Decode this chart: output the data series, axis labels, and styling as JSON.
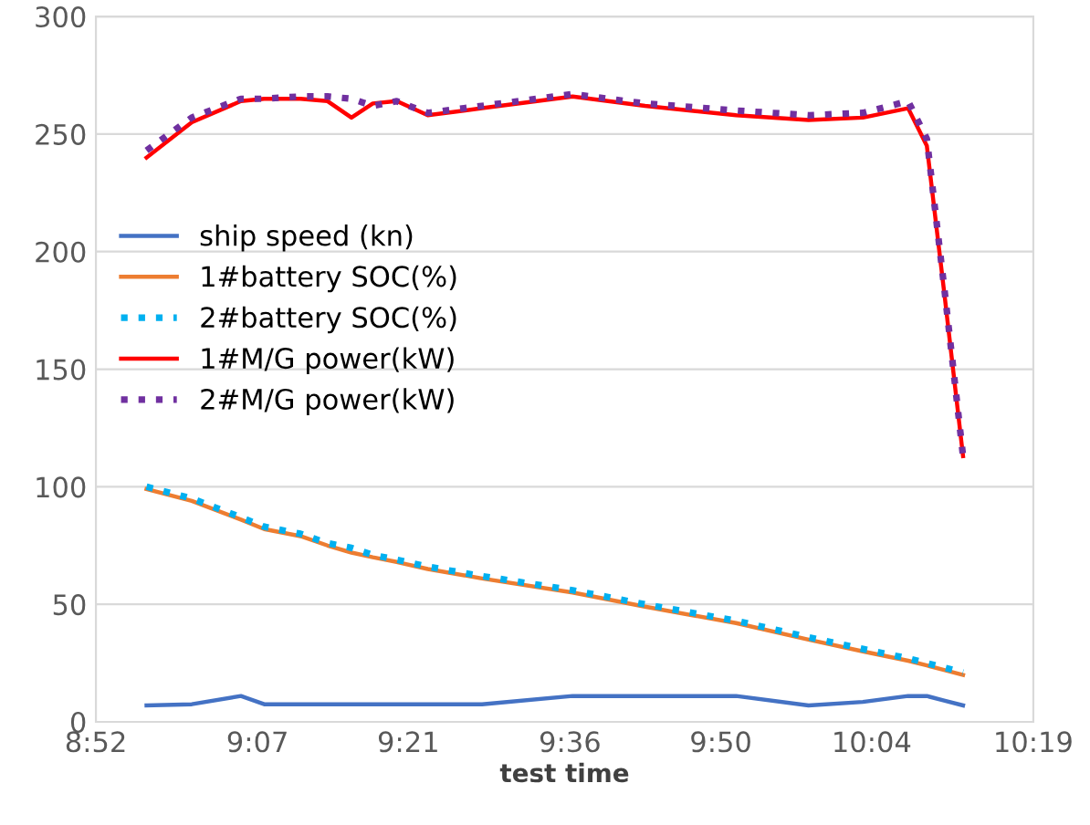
{
  "chart_data": {
    "type": "line",
    "xlabel": "test time",
    "x": [
      8.945,
      9.015,
      9.091,
      9.127,
      9.183,
      9.225,
      9.262,
      9.295,
      9.332,
      9.38,
      9.464,
      9.604,
      9.716,
      9.857,
      9.969,
      10.053,
      10.123,
      10.152,
      10.18,
      10.208
    ],
    "series": [
      {
        "name": "ship speed (kn)",
        "color": "#4472c4",
        "line_style": "solid",
        "values": [
          7,
          7.5,
          11,
          7.5,
          7.5,
          7.5,
          7.5,
          7.5,
          7.5,
          7.5,
          7.5,
          11,
          11,
          11,
          7,
          8.5,
          11,
          11,
          9,
          7
        ]
      },
      {
        "name": "1#battery SOC(%)",
        "color": "#ed7d31",
        "line_style": "solid",
        "values": [
          99,
          94,
          86,
          82,
          79,
          75,
          72,
          70,
          68,
          65,
          61,
          55,
          49,
          42,
          35,
          30,
          26,
          24,
          22,
          20
        ]
      },
      {
        "name": "2#battery SOC(%)",
        "color": "#00b0f0",
        "line_style": "dotted",
        "values": [
          100,
          95,
          87,
          83,
          80,
          76,
          74,
          71,
          69,
          66,
          62,
          56,
          50,
          43,
          36,
          31,
          27,
          25,
          23,
          21
        ]
      },
      {
        "name": "1#M/G power(kW)",
        "color": "#ff0000",
        "line_style": "solid",
        "values": [
          240,
          255,
          264,
          265,
          265,
          264,
          257,
          263,
          264,
          258,
          261,
          266,
          262,
          258,
          256,
          257,
          261,
          245,
          180,
          113
        ]
      },
      {
        "name": "2#M/G power(kW)",
        "color": "#7030a0",
        "line_style": "dotted",
        "values": [
          243,
          257,
          265,
          265,
          266,
          266,
          265,
          262,
          264,
          259,
          262,
          267,
          263,
          260,
          258,
          259,
          264,
          248,
          182,
          113
        ]
      }
    ],
    "xlim": [
      8.8667,
      10.3167
    ],
    "xticks": [
      {
        "value": 8.8667,
        "label": "8:52"
      },
      {
        "value": 9.1167,
        "label": "9:07"
      },
      {
        "value": 9.35,
        "label": "9:21"
      },
      {
        "value": 9.6,
        "label": "9:36"
      },
      {
        "value": 9.8333,
        "label": "9:50"
      },
      {
        "value": 10.0667,
        "label": "10:04"
      },
      {
        "value": 10.3167,
        "label": "10:19"
      }
    ],
    "ylim": [
      0,
      300
    ],
    "yticks": [
      0,
      50,
      100,
      150,
      200,
      250,
      300
    ],
    "grid": "y",
    "legend": "center left",
    "marker": "none"
  }
}
